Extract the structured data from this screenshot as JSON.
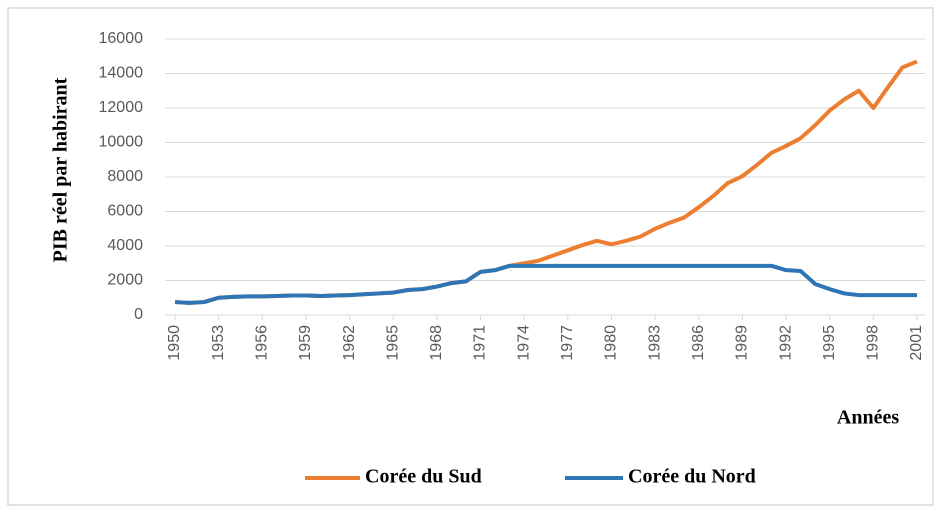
{
  "chart_data": {
    "type": "line",
    "y_label": "PIB réel par habirant",
    "x_label": "Années",
    "x": [
      1950,
      1951,
      1952,
      1953,
      1954,
      1955,
      1956,
      1957,
      1958,
      1959,
      1960,
      1961,
      1962,
      1963,
      1964,
      1965,
      1966,
      1967,
      1968,
      1969,
      1970,
      1971,
      1972,
      1973,
      1974,
      1975,
      1976,
      1977,
      1978,
      1979,
      1980,
      1981,
      1982,
      1983,
      1984,
      1985,
      1986,
      1987,
      1988,
      1989,
      1990,
      1991,
      1992,
      1993,
      1994,
      1995,
      1996,
      1997,
      1998,
      1999,
      2000,
      2001
    ],
    "series": [
      {
        "name": "Corée du Sud",
        "color": "#ed7d31",
        "values": [
          750,
          700,
          750,
          1000,
          1050,
          1080,
          1080,
          1100,
          1130,
          1130,
          1100,
          1130,
          1150,
          1200,
          1250,
          1300,
          1450,
          1500,
          1650,
          1850,
          1950,
          2500,
          2600,
          2850,
          3000,
          3150,
          3450,
          3750,
          4050,
          4300,
          4100,
          4300,
          4550,
          5000,
          5350,
          5650,
          6250,
          6900,
          7650,
          8050,
          8700,
          9400,
          9800,
          10250,
          11000,
          11850,
          12500,
          13000,
          12000,
          13200,
          14350,
          14700
        ]
      },
      {
        "name": "Corée du Nord",
        "color": "#2e75b6",
        "values": [
          750,
          700,
          750,
          1000,
          1050,
          1080,
          1080,
          1100,
          1130,
          1130,
          1100,
          1130,
          1150,
          1200,
          1250,
          1300,
          1450,
          1500,
          1650,
          1850,
          1950,
          2500,
          2600,
          2850,
          2850,
          2850,
          2850,
          2850,
          2850,
          2850,
          2850,
          2850,
          2850,
          2850,
          2850,
          2850,
          2850,
          2850,
          2850,
          2850,
          2850,
          2850,
          2600,
          2550,
          1800,
          1500,
          1250,
          1150,
          1150,
          1150,
          1150,
          1150
        ]
      }
    ],
    "xlim": [
      1950,
      2001
    ],
    "xticks": [
      1950,
      1953,
      1956,
      1959,
      1962,
      1965,
      1968,
      1971,
      1974,
      1977,
      1980,
      1983,
      1986,
      1989,
      1992,
      1995,
      1998,
      2001
    ],
    "ylim": [
      0,
      16000
    ],
    "yticks": [
      0,
      2000,
      4000,
      6000,
      8000,
      10000,
      12000,
      14000,
      16000
    ],
    "grid": true,
    "legend": "bottom"
  }
}
